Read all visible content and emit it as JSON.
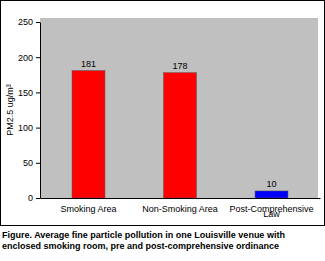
{
  "chart_data": {
    "type": "bar",
    "title": "Figure. Average fine particle pollution in one Louisville venue with enclosed smoking room, pre and post-comprehensive ordinance",
    "y_label": "PM2.5 ug/m³",
    "categories": [
      "Smoking Area",
      "Non-Smoking Area",
      "Post-Comprehensive Law"
    ],
    "values": [
      181,
      178,
      10
    ],
    "colors": [
      "#ff0000",
      "#ff0000",
      "#0000ff"
    ],
    "ylim": [
      0,
      250
    ],
    "yticks": [
      0,
      50,
      100,
      150,
      200,
      250
    ],
    "grid": false,
    "data_labels": true
  }
}
